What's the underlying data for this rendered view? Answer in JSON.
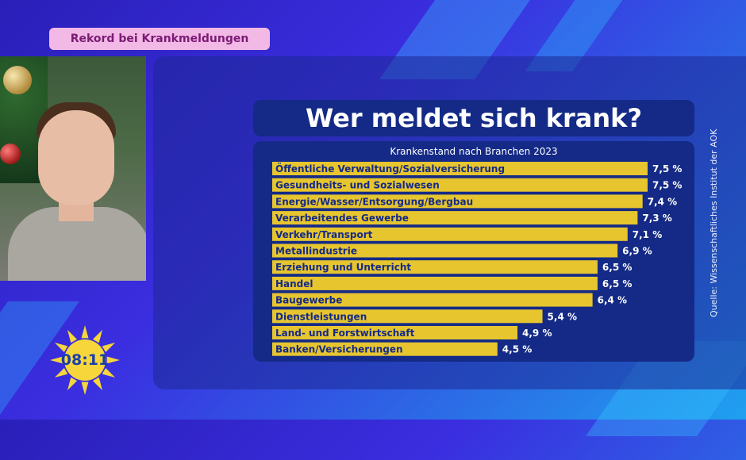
{
  "headline": "Rekord bei Krankmeldungen",
  "clock": "08:11",
  "source": "Quelle: Wissenschaftliches Institut der AOK",
  "colors": {
    "headline_bg": "#f3b9e6",
    "headline_text": "#7a1c74",
    "panel_bg": "#142a86",
    "bar": "#e7c52f",
    "clock_sun": "#f6d63a"
  },
  "chart_data": {
    "type": "bar",
    "orientation": "horizontal",
    "title": "Wer meldet sich krank?",
    "subtitle": "Krankenstand nach Branchen 2023",
    "categories": [
      "Öffentliche Verwaltung/Sozialversicherung",
      "Gesundheits- und Sozialwesen",
      "Energie/Wasser/Entsorgung/Bergbau",
      "Verarbeitendes Gewerbe",
      "Verkehr/Transport",
      "Metallindustrie",
      "Erziehung und Unterricht",
      "Handel",
      "Baugewerbe",
      "Dienstleistungen",
      "Land- und Forstwirtschaft",
      "Banken/Versicherungen"
    ],
    "values": [
      7.5,
      7.5,
      7.4,
      7.3,
      7.1,
      6.9,
      6.5,
      6.5,
      6.4,
      5.4,
      4.9,
      4.5
    ],
    "value_labels": [
      "7,5 %",
      "7,5 %",
      "7,4 %",
      "7,3 %",
      "7,1 %",
      "6,9 %",
      "6,5 %",
      "6,5 %",
      "6,4 %",
      "5,4 %",
      "4,9 %",
      "4,5 %"
    ],
    "xlim": [
      0,
      7.5
    ],
    "grid": false,
    "legend": "none"
  }
}
